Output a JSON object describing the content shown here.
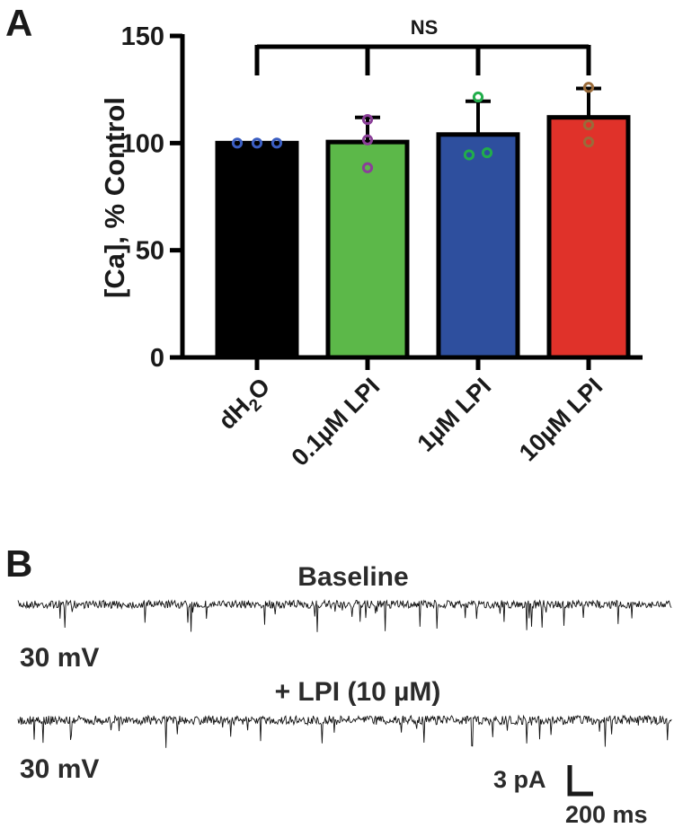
{
  "panel_a": {
    "letter": "A",
    "chart_data": {
      "type": "bar",
      "categories": [
        "dH2O",
        "0.1µM LPI",
        "1µM LPI",
        "10µM LPI"
      ],
      "values": [
        100,
        100.5,
        104,
        112
      ],
      "error": [
        0,
        11.5,
        15.5,
        13.5
      ],
      "points": [
        [
          100,
          100,
          100
        ],
        [
          111,
          101.5,
          88.5
        ],
        [
          121.5,
          94.5,
          95.5
        ],
        [
          126,
          108.5,
          100.5
        ]
      ],
      "bar_colors": [
        "#000000",
        "#5cb849",
        "#2e4f9e",
        "#e0322a"
      ],
      "point_colors": [
        "#3b5ec1",
        "#8a3f98",
        "#21ad4b",
        "#9a6b3a"
      ],
      "ylabel": "[Ca], % Control",
      "ylim": [
        0,
        150
      ],
      "yticks": [
        0,
        50,
        100,
        150
      ],
      "ytick_labels": [
        "0",
        "50",
        "100",
        "150"
      ],
      "significance": "NS"
    },
    "x_labels": {
      "dh2o_main": "dH",
      "dh2o_sub": "2",
      "dh2o_tail": "O",
      "c2": "0.1µM LPI",
      "c3": "1µM LPI",
      "c4": "10µM LPI"
    }
  },
  "panel_b": {
    "letter": "B",
    "traces": [
      {
        "title": "Baseline",
        "voltage": "30 mV"
      },
      {
        "title": "+ LPI (10 µM)",
        "voltage": "30 mV"
      }
    ],
    "scale_bar": {
      "y_label": "3 pA",
      "x_label": "200 ms"
    }
  }
}
